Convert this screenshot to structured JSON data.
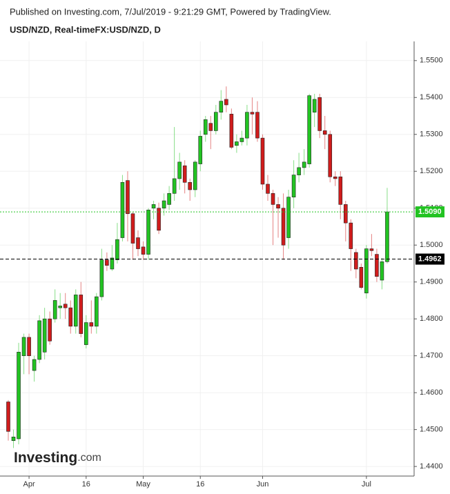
{
  "chart_data": {
    "type": "candlestick",
    "header": "Published on Investing.com, 7/Jul/2019 - 9:21:29 GMT, Powered by TradingView.",
    "title": "USD/NZD, Real-timeFX:USD/NZD, D",
    "logo": {
      "main": "Investing",
      "suffix": ".com"
    },
    "up_color": "#22c322",
    "down_color": "#d01c1c",
    "categories": [
      null,
      null,
      null,
      null,
      "Apr",
      null,
      null,
      null,
      null,
      null,
      null,
      null,
      null,
      null,
      null,
      "16",
      null,
      null,
      null,
      null,
      null,
      null,
      null,
      null,
      null,
      null,
      "May",
      null,
      null,
      null,
      null,
      null,
      null,
      null,
      null,
      null,
      null,
      "16",
      null,
      null,
      null,
      null,
      null,
      null,
      null,
      null,
      null,
      null,
      null,
      "Jun",
      null,
      null,
      null,
      null,
      null,
      null,
      null,
      null,
      null,
      null,
      null,
      null,
      null,
      null,
      null,
      null,
      null,
      null,
      null,
      "Jul",
      null,
      null,
      null,
      null
    ],
    "open": [
      1.4575,
      1.447,
      1.4475,
      1.47,
      1.475,
      1.466,
      1.469,
      1.471,
      1.48,
      1.48,
      1.483,
      1.484,
      1.483,
      1.478,
      1.4865,
      1.473,
      1.479,
      1.478,
      1.486,
      1.496,
      1.4935,
      1.496,
      1.502,
      1.5175,
      1.5085,
      1.502,
      1.4995,
      1.4975,
      1.51,
      1.51,
      1.51,
      1.511,
      1.514,
      1.518,
      1.5215,
      1.517,
      1.515,
      1.522,
      1.53,
      1.533,
      1.531,
      1.536,
      1.5395,
      1.5355,
      1.527,
      1.528,
      1.529,
      1.536,
      1.536,
      1.529,
      1.5165,
      1.514,
      1.511,
      1.51,
      1.502,
      1.513,
      1.519,
      1.521,
      1.522,
      1.536,
      1.54,
      1.531,
      1.53,
      1.5185,
      1.5185,
      1.511,
      1.506,
      1.498,
      1.494,
      1.487,
      1.499,
      1.4975,
      1.4905,
      1.4955
    ],
    "high": [
      1.458,
      1.45,
      1.4735,
      1.476,
      1.476,
      1.47,
      1.481,
      1.483,
      1.482,
      1.488,
      1.487,
      1.487,
      1.485,
      1.488,
      1.49,
      1.481,
      1.485,
      1.487,
      1.499,
      1.498,
      1.5,
      1.506,
      1.519,
      1.52,
      1.509,
      1.504,
      1.501,
      1.51,
      1.512,
      1.5115,
      1.514,
      1.516,
      1.532,
      1.525,
      1.523,
      1.518,
      1.523,
      1.531,
      1.535,
      1.535,
      1.538,
      1.542,
      1.543,
      1.537,
      1.53,
      1.531,
      1.538,
      1.54,
      1.539,
      1.53,
      1.519,
      1.515,
      1.513,
      1.514,
      1.515,
      1.523,
      1.525,
      1.526,
      1.541,
      1.541,
      1.541,
      1.535,
      1.531,
      1.52,
      1.52,
      1.512,
      1.507,
      1.499,
      1.495,
      1.5,
      1.503,
      1.499,
      1.4965,
      1.5155
    ],
    "low": [
      1.447,
      1.445,
      1.446,
      1.465,
      1.465,
      1.463,
      1.468,
      1.469,
      1.473,
      1.479,
      1.48,
      1.48,
      1.476,
      1.476,
      1.475,
      1.472,
      1.476,
      1.476,
      1.485,
      1.493,
      1.493,
      1.495,
      1.501,
      1.501,
      1.496,
      1.497,
      1.496,
      1.496,
      1.507,
      1.503,
      1.508,
      1.5095,
      1.512,
      1.515,
      1.514,
      1.512,
      1.513,
      1.52,
      1.528,
      1.526,
      1.53,
      1.534,
      1.536,
      1.526,
      1.525,
      1.527,
      1.527,
      1.53,
      1.528,
      1.515,
      1.512,
      1.5,
      1.502,
      1.496,
      1.499,
      1.51,
      1.517,
      1.519,
      1.521,
      1.532,
      1.529,
      1.526,
      1.517,
      1.516,
      1.507,
      1.501,
      1.493,
      1.491,
      1.488,
      1.4855,
      1.497,
      1.49,
      1.488,
      1.495
    ],
    "close": [
      1.4495,
      1.448,
      1.471,
      1.475,
      1.47,
      1.469,
      1.4795,
      1.48,
      1.474,
      1.485,
      1.4835,
      1.483,
      1.478,
      1.4865,
      1.476,
      1.479,
      1.478,
      1.486,
      1.496,
      1.4945,
      1.4965,
      1.5015,
      1.517,
      1.5085,
      1.5005,
      1.499,
      1.4975,
      1.5095,
      1.511,
      1.504,
      1.512,
      1.514,
      1.518,
      1.5225,
      1.517,
      1.515,
      1.5225,
      1.5295,
      1.534,
      1.531,
      1.536,
      1.539,
      1.538,
      1.5265,
      1.528,
      1.529,
      1.536,
      1.5355,
      1.529,
      1.5165,
      1.514,
      1.511,
      1.51,
      1.5,
      1.513,
      1.519,
      1.521,
      1.5225,
      1.5405,
      1.5395,
      1.531,
      1.53,
      1.5185,
      1.518,
      1.511,
      1.506,
      1.499,
      1.4935,
      1.4885,
      1.499,
      1.4985,
      1.4915,
      1.4955,
      1.509
    ],
    "ylim": [
      1.4374,
      1.5552
    ],
    "yticks": [
      {
        "value": 1.44,
        "label": "1.4400"
      },
      {
        "value": 1.45,
        "label": "1.4500"
      },
      {
        "value": 1.46,
        "label": "1.4600"
      },
      {
        "value": 1.47,
        "label": "1.4700"
      },
      {
        "value": 1.48,
        "label": "1.4800"
      },
      {
        "value": 1.49,
        "label": "1.4900"
      },
      {
        "value": 1.5,
        "label": "1.5000"
      },
      {
        "value": 1.51,
        "label": "1.5100"
      },
      {
        "value": 1.52,
        "label": "1.5200"
      },
      {
        "value": 1.53,
        "label": "1.5300"
      },
      {
        "value": 1.54,
        "label": "1.5400"
      },
      {
        "value": 1.55,
        "label": "1.5500"
      }
    ],
    "last_price": {
      "value": 1.509,
      "label": "1.5090",
      "color": "#22c322"
    },
    "level_line": {
      "value": 1.4962,
      "label": "1.4962",
      "color": "#000000"
    },
    "grid": true
  }
}
